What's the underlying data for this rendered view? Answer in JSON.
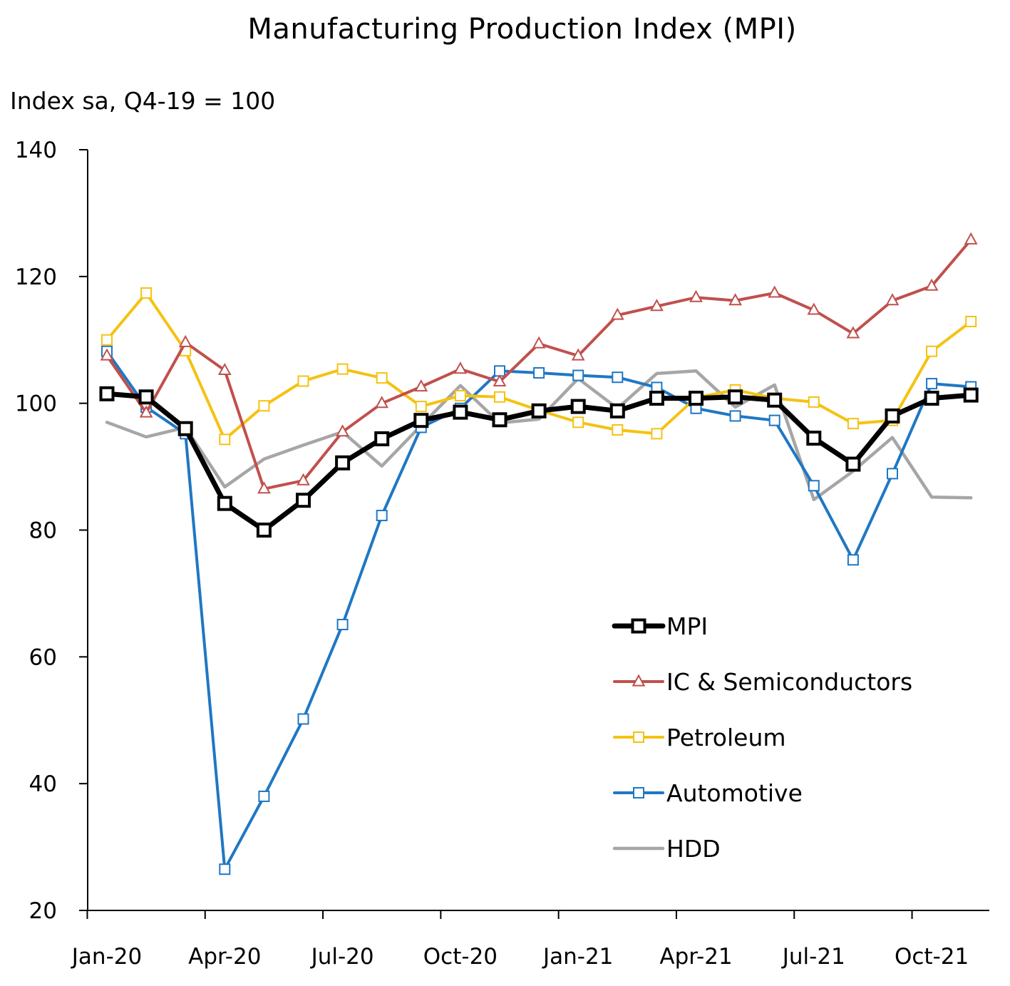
{
  "chart_data": {
    "type": "line",
    "title": "Manufacturing Production Index (MPI)",
    "ylabel": "Index sa, Q4-19 = 100",
    "xlabel": "",
    "ylim": [
      20,
      140
    ],
    "yticks": [
      20,
      40,
      60,
      80,
      100,
      120,
      140
    ],
    "grid": false,
    "legend_position": "bottom-right",
    "x": [
      "Jan-20",
      "Feb-20",
      "Mar-20",
      "Apr-20",
      "May-20",
      "Jun-20",
      "Jul-20",
      "Aug-20",
      "Sep-20",
      "Oct-20",
      "Nov-20",
      "Dec-20",
      "Jan-21",
      "Feb-21",
      "Mar-21",
      "Apr-21",
      "May-21",
      "Jun-21",
      "Jul-21",
      "Aug-21",
      "Sep-21",
      "Oct-21",
      "Nov-21"
    ],
    "xtick_labels": [
      "Jan-20",
      "Apr-20",
      "Jul-20",
      "Oct-20",
      "Jan-21",
      "Apr-21",
      "Jul-21",
      "Oct-21"
    ],
    "series": [
      {
        "name": "MPI",
        "color": "#000000",
        "marker": "square",
        "values": [
          101.5,
          101,
          96,
          84.2,
          80,
          84.7,
          90.6,
          94.4,
          97.3,
          98.6,
          97.4,
          98.8,
          99.5,
          98.8,
          100.8,
          100.8,
          101,
          100.5,
          94.5,
          90.4,
          98,
          100.8,
          101.3
        ]
      },
      {
        "name": "IC & Semiconductors",
        "color": "#c0504d",
        "marker": "triangle",
        "values": [
          107.5,
          98.5,
          109.6,
          105.2,
          86.5,
          87.8,
          95.5,
          100,
          102.6,
          105.4,
          103.4,
          109.4,
          107.5,
          113.9,
          115.3,
          116.7,
          116.2,
          117.4,
          114.7,
          111,
          116.2,
          118.5,
          125.8
        ]
      },
      {
        "name": "Petroleum",
        "color": "#f5c211",
        "marker": "square",
        "values": [
          110,
          117.4,
          108.3,
          94.3,
          99.6,
          103.5,
          105.4,
          104,
          99.5,
          101.2,
          101,
          98.9,
          97,
          95.8,
          95.2,
          100.9,
          102.1,
          100.8,
          100.2,
          96.8,
          97.3,
          108.2,
          112.9
        ]
      },
      {
        "name": "Automotive",
        "color": "#1f77c4",
        "marker": "square",
        "values": [
          108.2,
          99.4,
          95.2,
          26.5,
          38,
          50.2,
          65.1,
          82.3,
          96.2,
          99.2,
          105.1,
          104.8,
          104.4,
          104.1,
          102.5,
          99.2,
          98,
          97.3,
          87,
          75.3,
          88.9,
          103.1,
          102.6
        ]
      },
      {
        "name": "HDD",
        "color": "#a6a6a6",
        "marker": "none",
        "values": [
          97,
          94.7,
          96.2,
          86.8,
          91.2,
          93.4,
          95.5,
          90.1,
          96.5,
          102.8,
          96.9,
          97.5,
          103.9,
          99.2,
          104.7,
          105.1,
          99.4,
          102.9,
          84.8,
          89.3,
          94.6,
          85.2,
          85.1
        ]
      }
    ]
  }
}
